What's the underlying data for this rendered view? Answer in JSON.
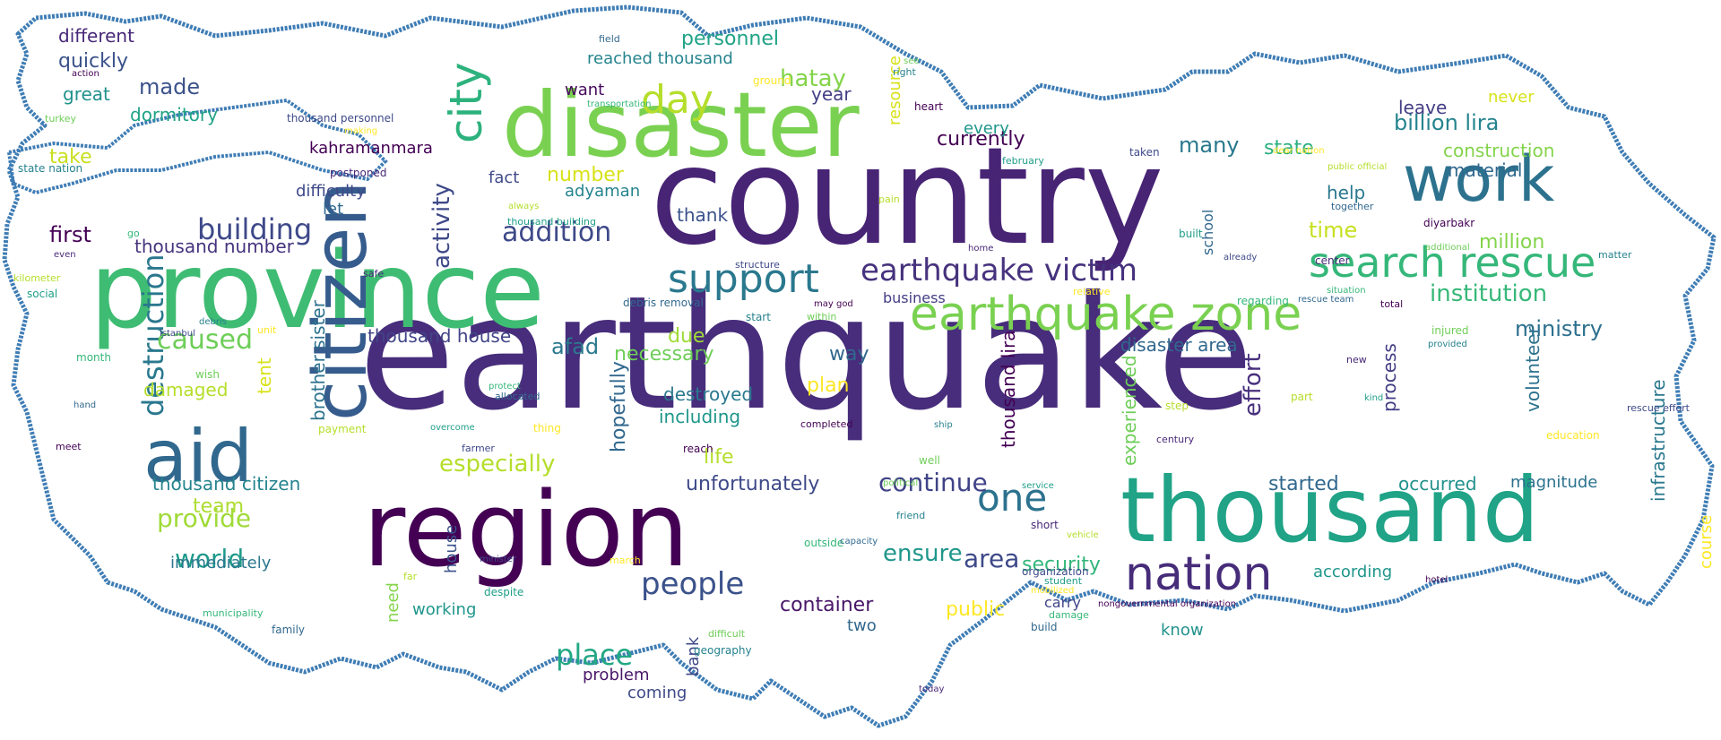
{
  "words": [
    {
      "text": "earthquake",
      "color": "#472d7b",
      "w": 700
    },
    {
      "text": "country",
      "color": "#482475",
      "w": 430
    },
    {
      "text": "province",
      "color": "#3fbc73",
      "w": 380
    },
    {
      "text": "disaster",
      "color": "#7ad151",
      "w": 310
    },
    {
      "text": "region",
      "color": "#440154",
      "w": 290
    },
    {
      "text": "thousand",
      "color": "#20a386",
      "w": 300
    },
    {
      "text": "nation",
      "color": "#472c7a",
      "w": 130
    },
    {
      "text": "citizen",
      "color": "#365c8d",
      "w": 90
    },
    {
      "text": "aid",
      "color": "#31688e",
      "w": 60
    },
    {
      "text": "work",
      "color": "#2c728e",
      "w": 100
    },
    {
      "text": "earthquake zone",
      "color": "#7ad151",
      "w": 90
    },
    {
      "text": "search rescue",
      "color": "#35b779",
      "w": 70
    },
    {
      "text": "support",
      "color": "#2a788e",
      "w": 60
    },
    {
      "text": "earthquake victim",
      "color": "#46327e",
      "w": 60
    },
    {
      "text": "city",
      "color": "#2db27d",
      "w": 50
    },
    {
      "text": "day",
      "color": "#b5de2b",
      "w": 50
    },
    {
      "text": "one",
      "color": "#2c728e",
      "w": 50
    },
    {
      "text": "people",
      "color": "#3b528b",
      "w": 40
    },
    {
      "text": "destruction",
      "color": "#2a788e",
      "w": 40
    },
    {
      "text": "building",
      "color": "#3e4989",
      "w": 40
    },
    {
      "text": "addition",
      "color": "#3e4989",
      "w": 40
    },
    {
      "text": "hatay",
      "color": "#84d44b",
      "w": 30
    },
    {
      "text": "place",
      "color": "#22a884",
      "w": 40
    },
    {
      "text": "caused",
      "color": "#6ece58",
      "w": 40
    },
    {
      "text": "nation_small",
      "color": "#472c7a",
      "w": 10
    },
    {
      "text": "activity",
      "color": "#3e4989",
      "w": 30
    },
    {
      "text": "continue",
      "color": "#404387",
      "w": 30
    },
    {
      "text": "world",
      "color": "#1f9a8a",
      "w": 30
    },
    {
      "text": "provide",
      "color": "#a0da39",
      "w": 30
    },
    {
      "text": "ensure",
      "color": "#1f968b",
      "w": 30
    },
    {
      "text": "area",
      "color": "#3e4989",
      "w": 30
    },
    {
      "text": "especially",
      "color": "#b5de2b",
      "w": 30
    },
    {
      "text": "effort",
      "color": "#472f7d",
      "w": 30
    },
    {
      "text": "currently",
      "color": "#440154",
      "w": 25
    },
    {
      "text": "billion lira",
      "color": "#25848e",
      "w": 25
    },
    {
      "text": "institution",
      "color": "#37b878",
      "w": 25
    },
    {
      "text": "ministry",
      "color": "#2d708e",
      "w": 25
    },
    {
      "text": "state",
      "color": "#29af7f",
      "w": 25
    },
    {
      "text": "container",
      "color": "#481668",
      "w": 25
    },
    {
      "text": "security",
      "color": "#32b67a",
      "w": 25
    },
    {
      "text": "public",
      "color": "#fde725",
      "w": 25
    },
    {
      "text": "time",
      "color": "#c8e020",
      "w": 25
    },
    {
      "text": "made",
      "color": "#3b528b",
      "w": 25
    },
    {
      "text": "first",
      "color": "#440154",
      "w": 25
    },
    {
      "text": "afad",
      "color": "#2a788e",
      "w": 25
    }
  ],
  "layout_words": [
    {
      "text": "earthquake",
      "size": 175,
      "color": "#472d7b"
    },
    {
      "text": "country",
      "size": 150,
      "color": "#482475"
    },
    {
      "text": "province",
      "size": 118,
      "color": "#3fbc73"
    },
    {
      "text": "disaster",
      "size": 100,
      "color": "#7ad151"
    },
    {
      "text": "region",
      "size": 115,
      "color": "#440154"
    },
    {
      "text": "thousand",
      "size": 100,
      "color": "#20a386"
    },
    {
      "text": "citizen",
      "size": 82,
      "color": "#365c8d"
    },
    {
      "text": "aid",
      "size": 80,
      "color": "#31688e"
    },
    {
      "text": "work",
      "size": 70,
      "color": "#2c728e"
    },
    {
      "text": "nation",
      "size": 52,
      "color": "#472c7a"
    },
    {
      "text": "earthquake zone",
      "size": 52,
      "color": "#7ad151"
    },
    {
      "text": "search rescue",
      "size": 46,
      "color": "#35b779"
    },
    {
      "text": "support",
      "size": 44,
      "color": "#2a788e"
    },
    {
      "text": "earthquake victim",
      "size": 34,
      "color": "#46327e"
    },
    {
      "text": "city",
      "size": 50,
      "color": "#2db27d"
    },
    {
      "text": "day",
      "size": 44,
      "color": "#b5de2b"
    },
    {
      "text": "one",
      "size": 42,
      "color": "#2c728e"
    },
    {
      "text": "people",
      "size": 34,
      "color": "#3b528b"
    },
    {
      "text": "destruction",
      "size": 32,
      "color": "#2a788e"
    },
    {
      "text": "building",
      "size": 32,
      "color": "#3e4989"
    },
    {
      "text": "addition",
      "size": 30,
      "color": "#3e4989"
    },
    {
      "text": "hatay",
      "size": 26,
      "color": "#84d44b"
    },
    {
      "text": "place",
      "size": 32,
      "color": "#22a884"
    },
    {
      "text": "caused",
      "size": 30,
      "color": "#6ece58"
    },
    {
      "text": "activity",
      "size": 26,
      "color": "#3e4989"
    },
    {
      "text": "continue",
      "size": 28,
      "color": "#404387"
    },
    {
      "text": "world",
      "size": 28,
      "color": "#1f9a8a"
    },
    {
      "text": "provide",
      "size": 28,
      "color": "#a0da39"
    },
    {
      "text": "ensure",
      "size": 26,
      "color": "#1f968b"
    },
    {
      "text": "area",
      "size": 28,
      "color": "#3e4989"
    },
    {
      "text": "especially",
      "size": 26,
      "color": "#b5de2b"
    },
    {
      "text": "effort",
      "size": 26,
      "color": "#472f7d"
    },
    {
      "text": "currently",
      "size": 22,
      "color": "#440154"
    },
    {
      "text": "billion lira",
      "size": 24,
      "color": "#25848e"
    },
    {
      "text": "institution",
      "size": 26,
      "color": "#37b878"
    },
    {
      "text": "ministry",
      "size": 24,
      "color": "#2d708e"
    },
    {
      "text": "state",
      "size": 22,
      "color": "#29af7f"
    },
    {
      "text": "container",
      "size": 22,
      "color": "#481668"
    },
    {
      "text": "security",
      "size": 22,
      "color": "#32b67a"
    },
    {
      "text": "public",
      "size": 22,
      "color": "#fde725"
    },
    {
      "text": "time",
      "size": 24,
      "color": "#c8e020"
    },
    {
      "text": "made",
      "size": 24,
      "color": "#3b528b"
    },
    {
      "text": "first",
      "size": 24,
      "color": "#440154"
    },
    {
      "text": "afad",
      "size": 24,
      "color": "#2a788e"
    },
    {
      "text": "many",
      "size": 24,
      "color": "#2a788e"
    },
    {
      "text": "necessary",
      "size": 22,
      "color": "#6ece58"
    },
    {
      "text": "due",
      "size": 22,
      "color": "#a0da39"
    },
    {
      "text": "way",
      "size": 22,
      "color": "#31688e"
    },
    {
      "text": "plan",
      "size": 22,
      "color": "#fde725"
    },
    {
      "text": "life",
      "size": 22,
      "color": "#b5de2b"
    },
    {
      "text": "thank",
      "size": 20,
      "color": "#3b528b"
    },
    {
      "text": "number",
      "size": 22,
      "color": "#d8e219"
    },
    {
      "text": "adyaman",
      "size": 18,
      "color": "#25848e"
    },
    {
      "text": "year",
      "size": 20,
      "color": "#433e85"
    },
    {
      "text": "hopefully",
      "size": 22,
      "color": "#31688e"
    },
    {
      "text": "unfortunately",
      "size": 22,
      "color": "#3e4989"
    },
    {
      "text": "destroyed",
      "size": 20,
      "color": "#2a788e"
    },
    {
      "text": "including",
      "size": 20,
      "color": "#1f968b"
    },
    {
      "text": "thousand house",
      "size": 20,
      "color": "#414487"
    },
    {
      "text": "thousand citizen",
      "size": 20,
      "color": "#25848e"
    },
    {
      "text": "thousand number",
      "size": 20,
      "color": "#46337e"
    },
    {
      "text": "thousand lira",
      "size": 20,
      "color": "#440154"
    },
    {
      "text": "damaged",
      "size": 20,
      "color": "#b5de2b"
    },
    {
      "text": "immediately",
      "size": 18,
      "color": "#2a788e"
    },
    {
      "text": "team",
      "size": 22,
      "color": "#addc30"
    },
    {
      "text": "tent",
      "size": 20,
      "color": "#d8e219"
    },
    {
      "text": "brother sister",
      "size": 20,
      "color": "#2c728e"
    },
    {
      "text": "started",
      "size": 22,
      "color": "#31688e"
    },
    {
      "text": "occurred",
      "size": 20,
      "color": "#21918c"
    },
    {
      "text": "magnitude",
      "size": 18,
      "color": "#2c728e"
    },
    {
      "text": "according",
      "size": 18,
      "color": "#1f968b"
    },
    {
      "text": "disaster area",
      "size": 20,
      "color": "#31688e"
    },
    {
      "text": "experienced",
      "size": 20,
      "color": "#6ece58"
    },
    {
      "text": "process",
      "size": 20,
      "color": "#433e85"
    },
    {
      "text": "volunteer",
      "size": 20,
      "color": "#2c728e"
    },
    {
      "text": "infrastructure",
      "size": 20,
      "color": "#2a788e"
    },
    {
      "text": "course",
      "size": 18,
      "color": "#fde725"
    },
    {
      "text": "material",
      "size": 20,
      "color": "#31688e"
    },
    {
      "text": "construction",
      "size": 20,
      "color": "#84d44b"
    },
    {
      "text": "leave",
      "size": 20,
      "color": "#433e85"
    },
    {
      "text": "never",
      "size": 18,
      "color": "#d8e219"
    },
    {
      "text": "million",
      "size": 22,
      "color": "#84d44b"
    },
    {
      "text": "help",
      "size": 20,
      "color": "#2a788e"
    },
    {
      "text": "fact",
      "size": 18,
      "color": "#3e4989"
    },
    {
      "text": "difficulty",
      "size": 18,
      "color": "#3e4989"
    },
    {
      "text": "let",
      "size": 18,
      "color": "#31688e"
    },
    {
      "text": "kahramanmara",
      "size": 18,
      "color": "#440154"
    },
    {
      "text": "reached thousand",
      "size": 18,
      "color": "#25848e"
    },
    {
      "text": "personnel",
      "size": 22,
      "color": "#20a386"
    },
    {
      "text": "want",
      "size": 18,
      "color": "#46085c"
    },
    {
      "text": "resource",
      "size": 18,
      "color": "#d8e219"
    },
    {
      "text": "every",
      "size": 18,
      "color": "#1f968b"
    },
    {
      "text": "different",
      "size": 20,
      "color": "#482878"
    },
    {
      "text": "quickly",
      "size": 22,
      "color": "#3b528b"
    },
    {
      "text": "great",
      "size": 20,
      "color": "#21918c"
    },
    {
      "text": "dormitory",
      "size": 20,
      "color": "#20a386"
    },
    {
      "text": "take",
      "size": 22,
      "color": "#c8e020"
    },
    {
      "text": "working",
      "size": 18,
      "color": "#1f968b"
    },
    {
      "text": "house",
      "size": 18,
      "color": "#3b528b"
    },
    {
      "text": "need",
      "size": 18,
      "color": "#84d44b"
    },
    {
      "text": "bank",
      "size": 18,
      "color": "#3e4989"
    },
    {
      "text": "problem",
      "size": 18,
      "color": "#481668"
    },
    {
      "text": "coming",
      "size": 18,
      "color": "#3e4989"
    },
    {
      "text": "two",
      "size": 18,
      "color": "#31688e"
    },
    {
      "text": "carry",
      "size": 16,
      "color": "#404387"
    },
    {
      "text": "know",
      "size": 18,
      "color": "#21918c"
    },
    {
      "text": "school",
      "size": 16,
      "color": "#31688e"
    },
    {
      "text": "business",
      "size": 16,
      "color": "#433e85"
    }
  ],
  "small_words": [
    "action",
    "turkey",
    "state nation",
    "even",
    "kilometer",
    "social",
    "istanbul",
    "unit",
    "month",
    "hand",
    "meet",
    "wish",
    "debris",
    "safe",
    "payment",
    "overcome",
    "farmer",
    "thing",
    "protect",
    "allocated",
    "reach",
    "political",
    "friend",
    "short",
    "vehicle",
    "student",
    "organization",
    "mobilized",
    "damage",
    "build",
    "nongovernmental organization",
    "difficult",
    "geography",
    "today",
    "far",
    "despite",
    "minister",
    "march",
    "outside",
    "capacity",
    "completed",
    "well",
    "ship",
    "century",
    "step",
    "service",
    "structure",
    "ground",
    "transportation",
    "field",
    "heart",
    "see",
    "right",
    "postponed",
    "always",
    "thousand building",
    "thousand personnel",
    "making",
    "go",
    "debris removal",
    "may god",
    "within",
    "start",
    "home",
    "pain",
    "built",
    "already",
    "relative",
    "regarding",
    "rescue team",
    "total",
    "injured",
    "provided",
    "new",
    "part",
    "kind",
    "rescue effort",
    "education",
    "situation",
    "together",
    "diyarbakr",
    "additional",
    "matter",
    "center",
    "public official",
    "february",
    "taken",
    "dear nation",
    "municipality",
    "family",
    "hotel"
  ]
}
